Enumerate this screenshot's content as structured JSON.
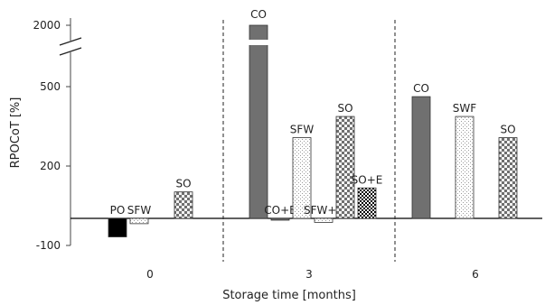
{
  "chart_data": {
    "type": "bar",
    "xlabel": "Storage time [months]",
    "ylabel": "RPOCoT [%]",
    "y_ticks": [
      "-100",
      "200",
      "500",
      "2000"
    ],
    "y_axis_break": [
      700,
      1900
    ],
    "categories": [
      "0",
      "3",
      "6"
    ],
    "grid": false,
    "bars": [
      {
        "label": "PO",
        "group": "0",
        "value": -70,
        "pattern": "solid-black"
      },
      {
        "label": "SFW",
        "group": "0",
        "value": -20,
        "pattern": "light-dotted"
      },
      {
        "label": "SO",
        "group": "0",
        "value": 100,
        "pattern": "checker-gray"
      },
      {
        "label": "CO",
        "group": "3",
        "value": 2000,
        "pattern": "solid-gray",
        "axis_break": true
      },
      {
        "label": "CO+E",
        "group": "3",
        "value": -5,
        "pattern": "solid-gray"
      },
      {
        "label": "SFW",
        "group": "3",
        "value": 305,
        "pattern": "light-dotted"
      },
      {
        "label": "SFW+E",
        "group": "3",
        "value": -15,
        "pattern": "light-dotted"
      },
      {
        "label": "SO",
        "group": "3",
        "value": 385,
        "pattern": "checker-gray"
      },
      {
        "label": "SO+E",
        "group": "3",
        "value": 115,
        "pattern": "checker-black"
      },
      {
        "label": "CO",
        "group": "6",
        "value": 460,
        "pattern": "solid-gray"
      },
      {
        "label": "SWF",
        "group": "6",
        "value": 385,
        "pattern": "light-dotted"
      },
      {
        "label": "SO",
        "group": "6",
        "value": 305,
        "pattern": "checker-gray"
      }
    ],
    "colors": {
      "solid_gray": "#707070",
      "solid_black": "#000000",
      "outline": "#333333",
      "checker_light": "#bdbdbd",
      "checker_dark": "#6f6f6f",
      "dot": "#9a9a9a"
    }
  }
}
